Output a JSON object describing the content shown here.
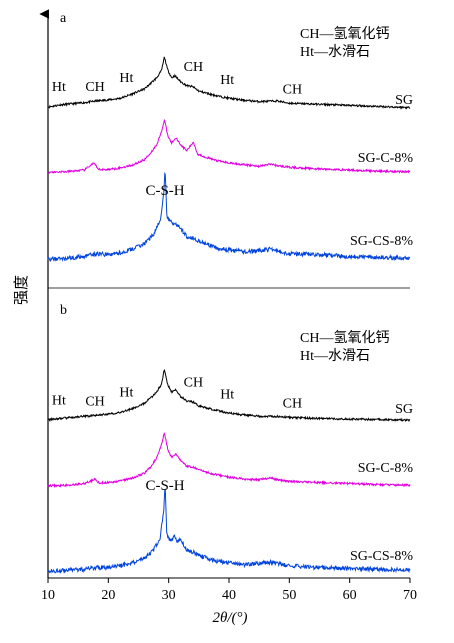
{
  "chart_data": [
    {
      "panel_label": "a",
      "type": "line",
      "title": "",
      "xlabel": "2θ/(°)",
      "ylabel": "强度",
      "xlim": [
        10,
        70
      ],
      "legend_note": [
        "CH—氢氧化钙",
        "Ht—水滑石"
      ],
      "annotations": [
        {
          "text": "C-S-H",
          "x": 29.4
        },
        {
          "text": "Ht",
          "x": 11.8
        },
        {
          "text": "CH",
          "x": 17.8
        },
        {
          "text": "Ht",
          "x": 23.0
        },
        {
          "text": "CH",
          "x": 34.1
        },
        {
          "text": "Ht",
          "x": 39.7
        },
        {
          "text": "CH",
          "x": 50.5
        }
      ],
      "series": [
        {
          "name": "SG",
          "color": "#000000",
          "points": [
            [
              10,
              0.09
            ],
            [
              12,
              0.13
            ],
            [
              14,
              0.15
            ],
            [
              16,
              0.17
            ],
            [
              18,
              0.2
            ],
            [
              20,
              0.22
            ],
            [
              22,
              0.25
            ],
            [
              24,
              0.33
            ],
            [
              26,
              0.42
            ],
            [
              27,
              0.52
            ],
            [
              28,
              0.62
            ],
            [
              28.8,
              0.75
            ],
            [
              29.3,
              1.0
            ],
            [
              29.8,
              0.78
            ],
            [
              30.5,
              0.62
            ],
            [
              31,
              0.66
            ],
            [
              32,
              0.55
            ],
            [
              33,
              0.48
            ],
            [
              34,
              0.46
            ],
            [
              35,
              0.38
            ],
            [
              37,
              0.32
            ],
            [
              39,
              0.27
            ],
            [
              40,
              0.25
            ],
            [
              42,
              0.22
            ],
            [
              45,
              0.19
            ],
            [
              48,
              0.2
            ],
            [
              50,
              0.16
            ],
            [
              55,
              0.14
            ],
            [
              60,
              0.12
            ],
            [
              65,
              0.1
            ],
            [
              70,
              0.08
            ]
          ]
        },
        {
          "name": "SG-C-8%",
          "color": "#e000e0",
          "points": [
            [
              10,
              0.05
            ],
            [
              13,
              0.06
            ],
            [
              16,
              0.09
            ],
            [
              17.6,
              0.22
            ],
            [
              18.3,
              0.1
            ],
            [
              20,
              0.1
            ],
            [
              22,
              0.13
            ],
            [
              24,
              0.18
            ],
            [
              26,
              0.28
            ],
            [
              27,
              0.4
            ],
            [
              28,
              0.55
            ],
            [
              28.7,
              0.75
            ],
            [
              29.3,
              1.0
            ],
            [
              29.9,
              0.7
            ],
            [
              30.5,
              0.58
            ],
            [
              31.2,
              0.68
            ],
            [
              32,
              0.55
            ],
            [
              33,
              0.44
            ],
            [
              34.1,
              0.6
            ],
            [
              34.8,
              0.38
            ],
            [
              36,
              0.33
            ],
            [
              38,
              0.26
            ],
            [
              40,
              0.22
            ],
            [
              43,
              0.18
            ],
            [
              45,
              0.16
            ],
            [
              47,
              0.2
            ],
            [
              48,
              0.17
            ],
            [
              50,
              0.14
            ],
            [
              55,
              0.11
            ],
            [
              60,
              0.09
            ],
            [
              65,
              0.07
            ],
            [
              70,
              0.06
            ]
          ]
        },
        {
          "name": "SG-CS-8%",
          "color": "#0044dd",
          "points": [
            [
              10,
              0.03
            ],
            [
              13,
              0.04
            ],
            [
              16,
              0.06
            ],
            [
              18,
              0.09
            ],
            [
              20,
              0.08
            ],
            [
              22,
              0.1
            ],
            [
              24,
              0.14
            ],
            [
              26,
              0.2
            ],
            [
              27.5,
              0.3
            ],
            [
              28.6,
              0.45
            ],
            [
              29.2,
              0.75
            ],
            [
              29.4,
              1.0
            ],
            [
              29.7,
              0.5
            ],
            [
              30.5,
              0.42
            ],
            [
              31.5,
              0.4
            ],
            [
              32,
              0.36
            ],
            [
              33,
              0.28
            ],
            [
              34,
              0.26
            ],
            [
              36,
              0.2
            ],
            [
              38,
              0.15
            ],
            [
              40,
              0.13
            ],
            [
              43,
              0.11
            ],
            [
              47,
              0.14
            ],
            [
              48,
              0.12
            ],
            [
              50,
              0.09
            ],
            [
              55,
              0.08
            ],
            [
              60,
              0.06
            ],
            [
              65,
              0.05
            ],
            [
              70,
              0.04
            ]
          ]
        }
      ]
    },
    {
      "panel_label": "b",
      "type": "line",
      "title": "",
      "xlabel": "2θ/(°)",
      "ylabel": "强度",
      "xlim": [
        10,
        70
      ],
      "xticks": [
        10,
        20,
        30,
        40,
        50,
        60,
        70
      ],
      "legend_note": [
        "CH—氢氧化钙",
        "Ht—水滑石"
      ],
      "annotations": [
        {
          "text": "C-S-H",
          "x": 29.4
        },
        {
          "text": "Ht",
          "x": 11.8
        },
        {
          "text": "CH",
          "x": 17.8
        },
        {
          "text": "Ht",
          "x": 23.0
        },
        {
          "text": "CH",
          "x": 34.1
        },
        {
          "text": "Ht",
          "x": 39.7
        },
        {
          "text": "CH",
          "x": 50.5
        }
      ],
      "series": [
        {
          "name": "SG",
          "color": "#000000",
          "points": [
            [
              10,
              0.08
            ],
            [
              12,
              0.1
            ],
            [
              14,
              0.12
            ],
            [
              16,
              0.14
            ],
            [
              18,
              0.16
            ],
            [
              20,
              0.18
            ],
            [
              22,
              0.21
            ],
            [
              24,
              0.28
            ],
            [
              26,
              0.38
            ],
            [
              27,
              0.47
            ],
            [
              28,
              0.58
            ],
            [
              28.8,
              0.72
            ],
            [
              29.3,
              1.0
            ],
            [
              29.8,
              0.72
            ],
            [
              30.5,
              0.58
            ],
            [
              31.2,
              0.62
            ],
            [
              32,
              0.5
            ],
            [
              33,
              0.42
            ],
            [
              34,
              0.4
            ],
            [
              35,
              0.33
            ],
            [
              37,
              0.27
            ],
            [
              39,
              0.22
            ],
            [
              40,
              0.2
            ],
            [
              42,
              0.17
            ],
            [
              45,
              0.14
            ],
            [
              48,
              0.14
            ],
            [
              50,
              0.12
            ],
            [
              55,
              0.1
            ],
            [
              60,
              0.09
            ],
            [
              65,
              0.08
            ],
            [
              70,
              0.07
            ]
          ]
        },
        {
          "name": "SG-C-8%",
          "color": "#e000e0",
          "points": [
            [
              10,
              0.04
            ],
            [
              13,
              0.05
            ],
            [
              16,
              0.08
            ],
            [
              17.8,
              0.16
            ],
            [
              18.5,
              0.09
            ],
            [
              20,
              0.1
            ],
            [
              22,
              0.13
            ],
            [
              24,
              0.18
            ],
            [
              26,
              0.27
            ],
            [
              27,
              0.38
            ],
            [
              28,
              0.55
            ],
            [
              28.7,
              0.75
            ],
            [
              29.3,
              1.0
            ],
            [
              29.9,
              0.68
            ],
            [
              30.5,
              0.56
            ],
            [
              31.2,
              0.62
            ],
            [
              32,
              0.5
            ],
            [
              33,
              0.4
            ],
            [
              34,
              0.38
            ],
            [
              35,
              0.33
            ],
            [
              37,
              0.26
            ],
            [
              40,
              0.2
            ],
            [
              43,
              0.16
            ],
            [
              45,
              0.15
            ],
            [
              47,
              0.18
            ],
            [
              48,
              0.15
            ],
            [
              50,
              0.12
            ],
            [
              55,
              0.1
            ],
            [
              60,
              0.08
            ],
            [
              65,
              0.06
            ],
            [
              70,
              0.05
            ]
          ]
        },
        {
          "name": "SG-CS-8%",
          "color": "#0044dd",
          "points": [
            [
              10,
              0.03
            ],
            [
              13,
              0.04
            ],
            [
              16,
              0.05
            ],
            [
              18,
              0.07
            ],
            [
              20,
              0.07
            ],
            [
              22,
              0.09
            ],
            [
              24,
              0.12
            ],
            [
              26,
              0.17
            ],
            [
              27.5,
              0.26
            ],
            [
              28.6,
              0.4
            ],
            [
              29.2,
              0.7
            ],
            [
              29.4,
              1.0
            ],
            [
              29.7,
              0.42
            ],
            [
              30.5,
              0.36
            ],
            [
              31,
              0.42
            ],
            [
              31.5,
              0.35
            ],
            [
              32,
              0.38
            ],
            [
              33,
              0.26
            ],
            [
              34,
              0.24
            ],
            [
              36,
              0.18
            ],
            [
              38,
              0.14
            ],
            [
              40,
              0.12
            ],
            [
              43,
              0.1
            ],
            [
              47,
              0.13
            ],
            [
              48,
              0.11
            ],
            [
              50,
              0.09
            ],
            [
              55,
              0.07
            ],
            [
              60,
              0.06
            ],
            [
              65,
              0.05
            ],
            [
              70,
              0.04
            ]
          ]
        }
      ]
    }
  ]
}
